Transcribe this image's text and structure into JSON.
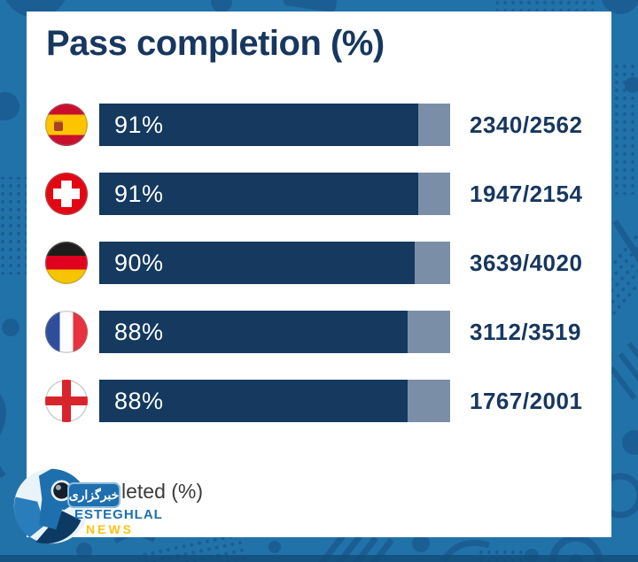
{
  "title": "Pass completion (%)",
  "rows": [
    {
      "country": "Spain",
      "percent_label": "91%",
      "fraction": "2340/2562"
    },
    {
      "country": "Switzerland",
      "percent_label": "91%",
      "fraction": "1947/2154"
    },
    {
      "country": "Germany",
      "percent_label": "90%",
      "fraction": "3639/4020"
    },
    {
      "country": "France",
      "percent_label": "88%",
      "fraction": "3112/3519"
    },
    {
      "country": "England",
      "percent_label": "88%",
      "fraction": "1767/2001"
    }
  ],
  "legend": {
    "visible_text": "leted (%)"
  },
  "watermark": {
    "persian_text": "خبرگزاری",
    "title": "ESTEGHLAL",
    "subtitle": "NEWS"
  },
  "colors": {
    "background": "#2272aa",
    "pattern_dark": "#1a5e94",
    "card_bg": "#ffffff",
    "title_text": "#17375f",
    "bar_fill": "#15395f",
    "bar_track": "#7b8ea7",
    "watermark_blue": "#1d6fae",
    "watermark_yellow": "#fdc20e"
  },
  "chart_data": {
    "type": "bar",
    "orientation": "horizontal",
    "title": "Pass completion (%)",
    "categories": [
      "Spain",
      "Switzerland",
      "Germany",
      "France",
      "England"
    ],
    "values": [
      91,
      91,
      90,
      88,
      88
    ],
    "value_labels": [
      "91%",
      "91%",
      "90%",
      "88%",
      "88%"
    ],
    "fraction_labels": [
      "2340/2562",
      "1947/2154",
      "3639/4020",
      "3112/3519",
      "1767/2001"
    ],
    "passes_completed": [
      2340,
      1947,
      3639,
      3112,
      1767
    ],
    "passes_attempted": [
      2562,
      2154,
      4020,
      3519,
      2001
    ],
    "xlim": [
      0,
      100
    ],
    "grid": false,
    "legend_position": "bottom-left",
    "legend_visible_text": "leted (%)"
  }
}
